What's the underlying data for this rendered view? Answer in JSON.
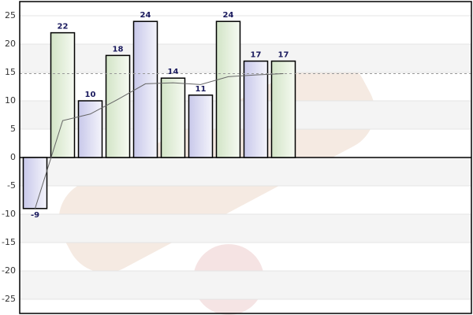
{
  "chart_data": {
    "type": "bar",
    "values": [
      -9,
      22,
      10,
      18,
      24,
      14,
      11,
      24,
      17,
      17
    ],
    "colors": [
      "#dcdcf0",
      "#e2eed8"
    ],
    "line": {
      "values": [
        -9,
        6.5,
        7.67,
        10.25,
        13,
        13.17,
        12.86,
        14.25,
        14.56,
        14.8
      ],
      "color": "#666666"
    },
    "average": 14.8,
    "ylim": [
      -27.5,
      27.5
    ],
    "yticks": [
      -25,
      -20,
      -15,
      -10,
      -5,
      0,
      5,
      10,
      15,
      20,
      25
    ],
    "grid": true
  }
}
